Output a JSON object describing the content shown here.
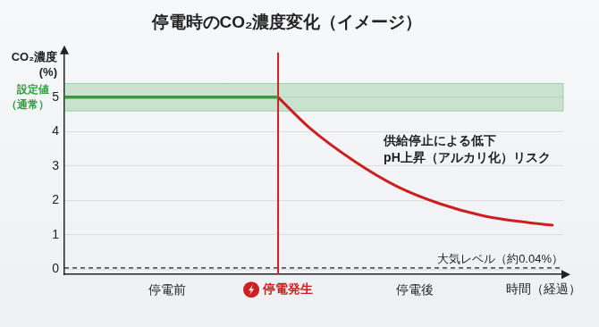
{
  "chart_data": {
    "type": "line",
    "title": "停電時のCO₂濃度変化（イメージ）",
    "y_label": [
      "CO₂濃度",
      "(%)"
    ],
    "x_label": "時間（経過）",
    "xlim": [
      0,
      10.2
    ],
    "xticks": [
      {
        "value": 2.1,
        "label": "停電前"
      },
      {
        "value": 7.16,
        "label": "停電後"
      }
    ],
    "ylim": [
      -0.15,
      6.3
    ],
    "yticks": [
      0,
      1,
      2,
      3,
      4,
      5
    ],
    "grid": true,
    "series": [
      {
        "color": "#2e9e3e",
        "x": [
          0,
          4.37
        ],
        "values": [
          5,
          5
        ]
      },
      {
        "color": "#cc1f1f",
        "x": [
          4.37,
          5.03,
          5.91,
          6.8,
          7.69,
          8.58,
          9.47,
          10
        ],
        "values": [
          5,
          4.09,
          3.16,
          2.41,
          1.9,
          1.55,
          1.36,
          1.28
        ]
      }
    ],
    "band": {
      "label": [
        "設定値",
        "（通常）"
      ],
      "from": 4.6,
      "to": 5.4
    },
    "event": {
      "x": 4.37,
      "label": "停電発生"
    },
    "reference_line": {
      "value": 0.04,
      "label": "大気レベル（約0.04%）",
      "line_style": "dashed"
    },
    "annotation": [
      "供給停止による低下",
      "pH上昇（アルカリ化）リスク"
    ]
  }
}
